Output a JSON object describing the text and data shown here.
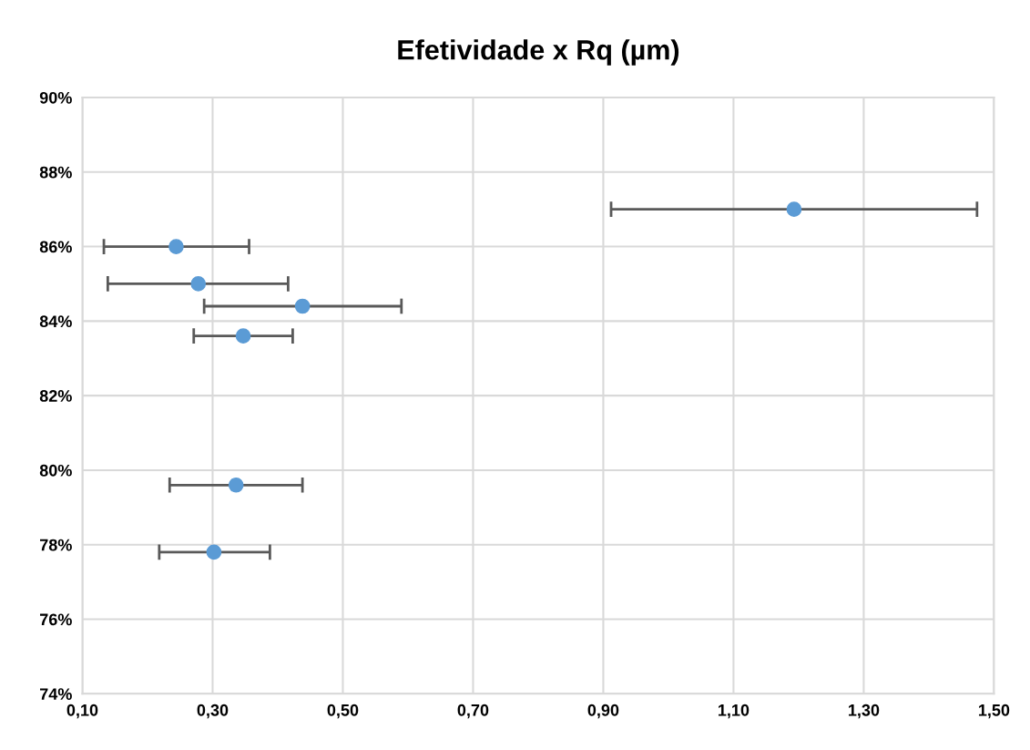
{
  "chart_data": {
    "type": "scatter",
    "title": "Efetividade x Rq (µm)",
    "x": [
      1.193,
      0.244,
      0.278,
      0.438,
      0.347,
      0.336,
      0.302
    ],
    "series": [
      {
        "color": "#5b9bd5",
        "values": [
          87,
          86,
          85,
          84.4,
          83.6,
          79.6,
          77.8
        ],
        "xerrors": [
          [
            0.912,
            1.474
          ],
          [
            0.133,
            0.356
          ],
          [
            0.139,
            0.416
          ],
          [
            0.287,
            0.59
          ],
          [
            0.271,
            0.423
          ],
          [
            0.234,
            0.438
          ],
          [
            0.218,
            0.388
          ]
        ]
      }
    ],
    "xlim": [
      0.1,
      1.5
    ],
    "xticks": [
      {
        "value": 0.1,
        "label": "0,10"
      },
      {
        "value": 0.3,
        "label": "0,30"
      },
      {
        "value": 0.5,
        "label": "0,50"
      },
      {
        "value": 0.7,
        "label": "0,70"
      },
      {
        "value": 0.9,
        "label": "0,90"
      },
      {
        "value": 1.1,
        "label": "1,10"
      },
      {
        "value": 1.3,
        "label": "1,30"
      },
      {
        "value": 1.5,
        "label": "1,50"
      }
    ],
    "ylim": [
      74,
      90
    ],
    "yticks": [
      {
        "value": 74,
        "label": "74%"
      },
      {
        "value": 76,
        "label": "76%"
      },
      {
        "value": 78,
        "label": "78%"
      },
      {
        "value": 80,
        "label": "80%"
      },
      {
        "value": 82,
        "label": "82%"
      },
      {
        "value": 84,
        "label": "84%"
      },
      {
        "value": 86,
        "label": "86%"
      },
      {
        "value": 88,
        "label": "88%"
      },
      {
        "value": 90,
        "label": "90%"
      }
    ],
    "grid": true,
    "marker": "circle"
  }
}
